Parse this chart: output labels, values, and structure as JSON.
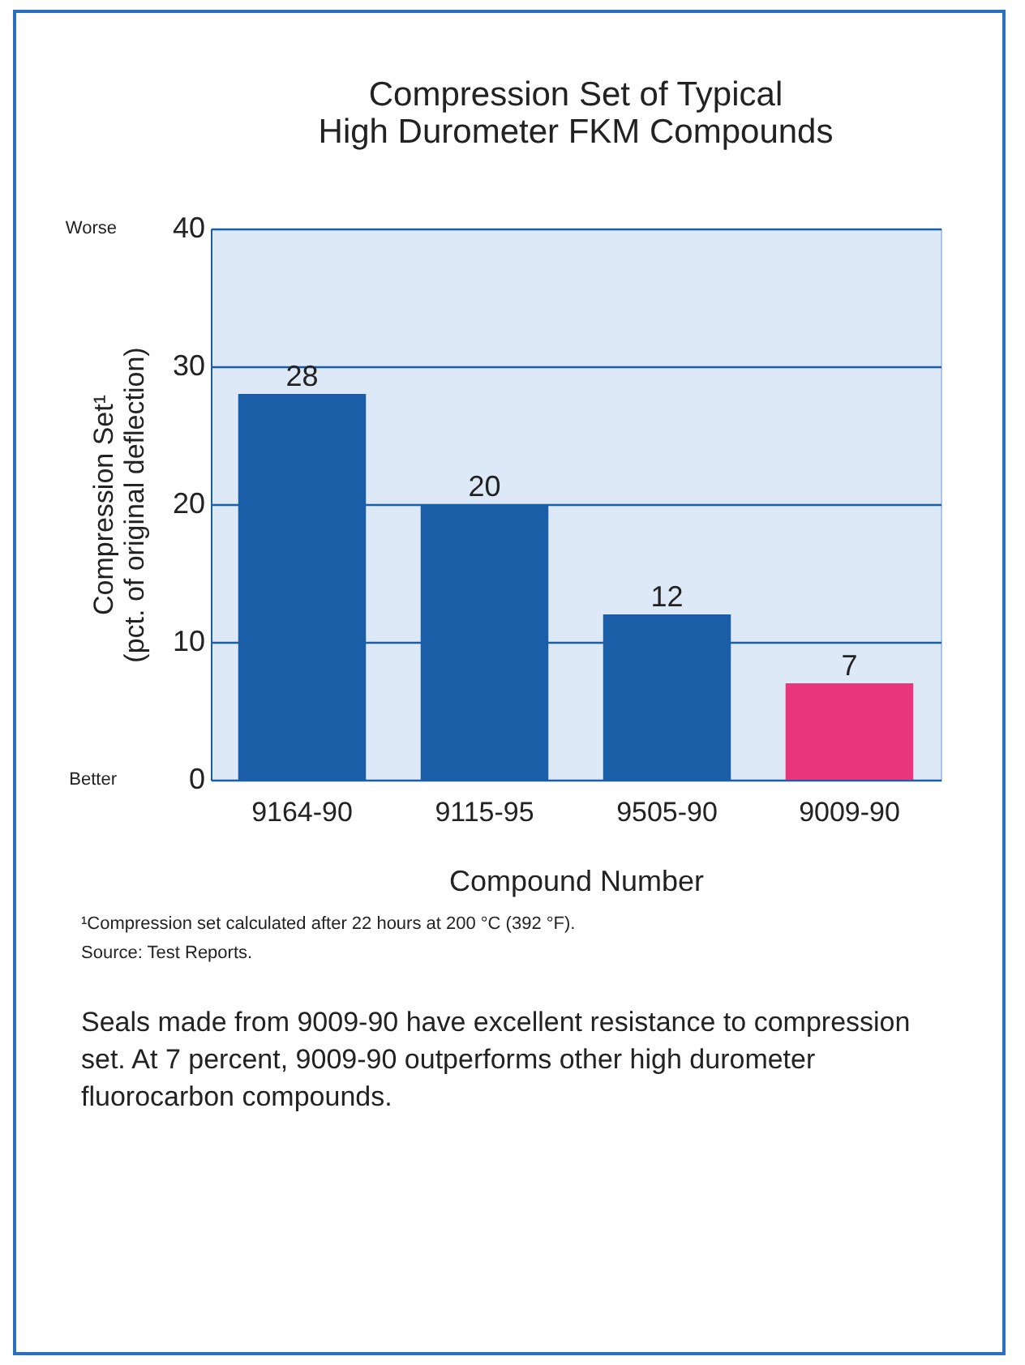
{
  "chart_data": {
    "type": "bar",
    "title": "Compression Set of Typical\nHigh Durometer FKM Compounds",
    "xlabel": "Compound Number",
    "ylabel": "Compression Set¹\n(pct. of original deflection)",
    "categories": [
      "9164-90",
      "9115-95",
      "9505-90",
      "9009-90"
    ],
    "values": [
      28,
      20,
      12,
      7
    ],
    "colors": [
      "#1a5ea8",
      "#1a5ea8",
      "#1a5ea8",
      "#e8357e"
    ],
    "ylim": [
      0,
      40
    ],
    "yticks": [
      0,
      10,
      20,
      30,
      40
    ],
    "grid": "y",
    "data_labels": true,
    "annotations": [
      "Worse",
      "Better",
      "¹Compression set calculated after 22 hours at 200 °C (392 °F).",
      "Source: Test Reports.",
      "Seals made from 9009-90 have excellent resistance to compression set. At 7 percent, 9009-90 outperforms other high durometer fluorocarbon compounds."
    ]
  }
}
